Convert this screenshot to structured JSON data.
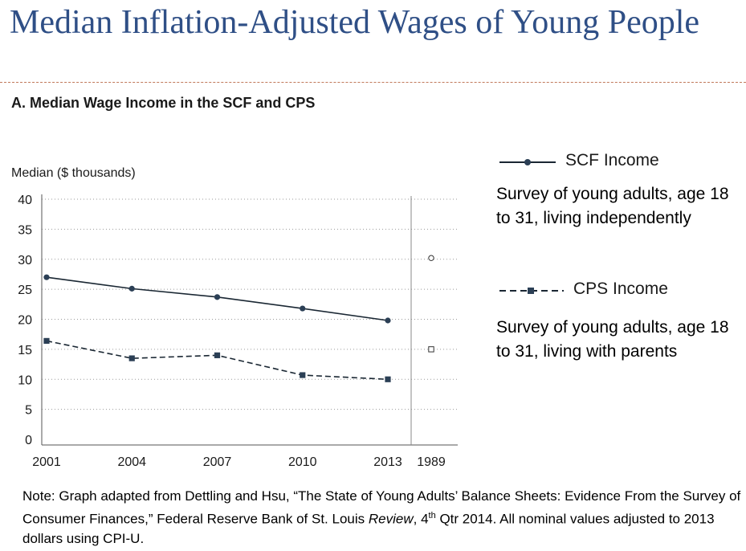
{
  "slide": {
    "title": "Median Inflation-Adjusted Wages of Young People"
  },
  "legend": {
    "scf_label": "SCF Income",
    "scf_desc": "Survey of young adults, age 18 to 31, living independently",
    "cps_label": "CPS Income",
    "cps_desc": "Survey of young adults, age 18 to 31, living with parents"
  },
  "footnote": {
    "part1": "Note: Graph adapted from Dettling and Hsu, “The State of Young Adults’ Balance Sheets: Evidence From the Survey of Consumer Finances,” Federal Reserve Bank of St. Louis ",
    "italic": "Review",
    "part2": ", 4",
    "sup": "th",
    "part3": " Qtr 2014. All nominal values adjusted to 2013 dollars using CPI-U."
  },
  "colors": {
    "title": "#2f4f86",
    "series": "#1a2733",
    "marker": "#2b3f55"
  },
  "chart_data": {
    "type": "line",
    "title": "A. Median Wage Income in the SCF and CPS",
    "ylabel": "Median ($ thousands)",
    "xlabel": "",
    "ylim": [
      0,
      40
    ],
    "yticks": [
      0,
      5,
      10,
      15,
      20,
      25,
      30,
      35,
      40
    ],
    "x": [
      "2001",
      "2004",
      "2007",
      "2010",
      "2013"
    ],
    "reference_x": "1989",
    "grid": "horizontal-dotted",
    "series": [
      {
        "name": "SCF Income",
        "style": "solid-circle",
        "values": [
          27.0,
          25.1,
          23.7,
          21.8,
          19.8
        ],
        "reference_value": 30.2
      },
      {
        "name": "CPS Income",
        "style": "dashed-square",
        "values": [
          16.4,
          13.5,
          14.0,
          10.7,
          10.0
        ],
        "reference_value": 15.0
      }
    ]
  }
}
